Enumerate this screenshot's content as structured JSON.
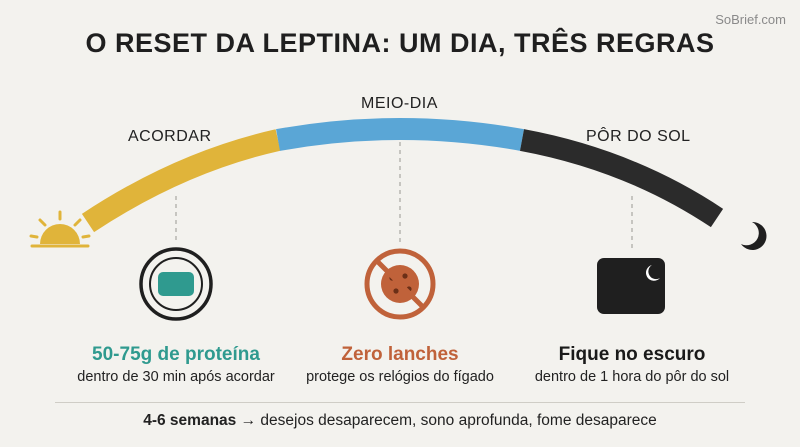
{
  "watermark": "SoBrief.com",
  "title": "O RESET DA LEPTINA: UM DIA, TRÊS REGRAS",
  "timeline": {
    "labels": {
      "wake": "ACORDAR",
      "noon": "MEIO-DIA",
      "sunset": "PÔR DO SOL"
    },
    "colors": {
      "morning": "#e0b43a",
      "midday": "#5aa6d6",
      "night": "#2b2b2b"
    }
  },
  "rules": [
    {
      "title": "50-75g de proteína",
      "subtitle": "dentro de 30 min após acordar",
      "color": "#2f9a8f",
      "icon": "protein-block-icon"
    },
    {
      "title": "Zero lanches",
      "subtitle": "protege os relógios do fígado",
      "color": "#c0623a",
      "icon": "no-cookie-icon"
    },
    {
      "title": "Fique no escuro",
      "subtitle": "dentro de 1 hora do pôr do sol",
      "color": "#1a1a1a",
      "icon": "dark-window-moon-icon"
    }
  ],
  "footer": {
    "bold": "4-6 semanas →",
    "text": " desejos desaparecem, sono aprofunda, fome desaparece"
  }
}
